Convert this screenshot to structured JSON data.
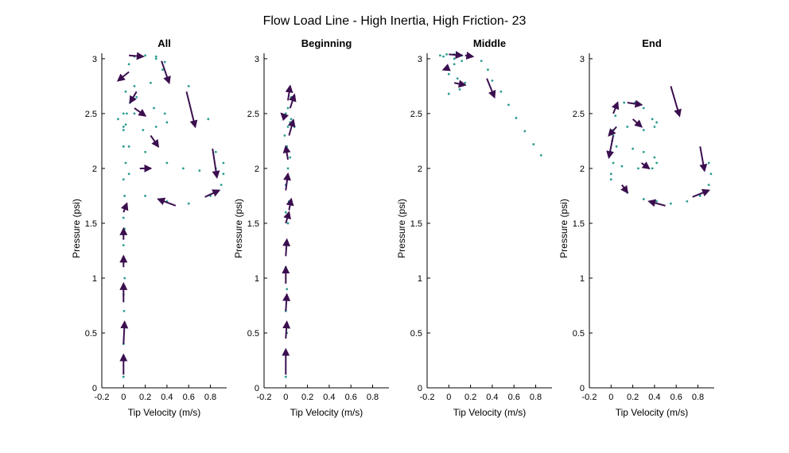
{
  "figure_title": "Flow Load Line - High Inertia, High Friction- 23",
  "colors": {
    "dots": "#2a9d8f",
    "arrows": "#3b0f4f",
    "axis": "#000000"
  },
  "chart_data": [
    {
      "type": "scatter",
      "title": "All",
      "xlabel": "Tip Velocity (m/s)",
      "ylabel": "Pressure (psi)",
      "xlim": [
        -0.2,
        0.95
      ],
      "ylim": [
        0,
        3.05
      ],
      "xticks": [
        -0.2,
        0,
        0.2,
        0.4,
        0.6,
        0.8
      ],
      "yticks": [
        0,
        0.5,
        1,
        1.5,
        2,
        2.5,
        3
      ],
      "xtick_labels": [
        "-0.2",
        "0",
        "0.2",
        "0.4",
        "0.6",
        "0.8"
      ],
      "ytick_labels": [
        "0",
        "0.5",
        "1",
        "1.5",
        "2",
        "2.5",
        "3"
      ],
      "series": [
        {
          "x": [
            0.0,
            0.005,
            0.0,
            0.01,
            0.005,
            0.0,
            0.01,
            0.005,
            0.0,
            0.01,
            0.0,
            0.005,
            0.01,
            0.0,
            0.02,
            0.05,
            0.0,
            0.03,
            0.06,
            0.02,
            -0.02,
            0.05,
            0.1,
            0.2,
            0.3,
            0.38,
            0.36,
            0.25,
            0.12,
            0.0,
            0.02,
            0.18,
            0.3,
            0.4,
            0.38,
            0.28,
            0.1,
            0.0,
            0.2,
            0.4,
            0.55,
            0.7,
            0.85,
            0.92,
            0.9,
            0.8,
            0.6,
            0.4,
            0.2,
            0.05,
            0.0,
            -0.05,
            0.1,
            0.3,
            0.6,
            0.78,
            0.85,
            0.92
          ],
          "y": [
            0.1,
            0.25,
            0.4,
            0.55,
            0.7,
            0.85,
            1.0,
            1.15,
            1.3,
            1.45,
            1.55,
            1.65,
            1.75,
            1.9,
            2.05,
            2.2,
            2.35,
            2.5,
            2.6,
            2.7,
            2.82,
            2.95,
            3.02,
            3.03,
            3.02,
            2.97,
            2.9,
            2.78,
            2.65,
            2.5,
            2.4,
            2.35,
            2.38,
            2.42,
            2.5,
            2.55,
            2.5,
            2.38,
            2.15,
            2.05,
            2.0,
            1.98,
            2.0,
            2.05,
            1.85,
            1.75,
            1.68,
            1.7,
            1.75,
            1.95,
            2.2,
            2.45,
            2.75,
            3.0,
            2.75,
            2.45,
            2.15,
            1.95
          ]
        }
      ],
      "arrows": [
        {
          "x": [
            0.0,
            0.0
          ],
          "y": [
            0.12,
            0.3
          ]
        },
        {
          "x": [
            0.0,
            0.01
          ],
          "y": [
            0.4,
            0.6
          ]
        },
        {
          "x": [
            0.0,
            0.0
          ],
          "y": [
            0.78,
            0.95
          ]
        },
        {
          "x": [
            0.0,
            0.0
          ],
          "y": [
            1.1,
            1.2
          ]
        },
        {
          "x": [
            0.0,
            0.0
          ],
          "y": [
            1.35,
            1.45
          ]
        },
        {
          "x": [
            0.0,
            0.03
          ],
          "y": [
            1.6,
            1.68
          ]
        },
        {
          "x": [
            0.48,
            0.32
          ],
          "y": [
            1.66,
            1.72
          ]
        },
        {
          "x": [
            0.75,
            0.88
          ],
          "y": [
            1.74,
            1.8
          ]
        },
        {
          "x": [
            0.82,
            0.86
          ],
          "y": [
            2.18,
            1.92
          ]
        },
        {
          "x": [
            0.58,
            0.66
          ],
          "y": [
            2.7,
            2.38
          ]
        },
        {
          "x": [
            0.35,
            0.42
          ],
          "y": [
            2.98,
            2.78
          ]
        },
        {
          "x": [
            0.15,
            0.25
          ],
          "y": [
            2.0,
            2.0
          ]
        },
        {
          "x": [
            0.25,
            0.32
          ],
          "y": [
            2.3,
            2.2
          ]
        },
        {
          "x": [
            0.1,
            0.2
          ],
          "y": [
            2.55,
            2.48
          ]
        },
        {
          "x": [
            0.05,
            -0.05
          ],
          "y": [
            2.88,
            2.8
          ]
        },
        {
          "x": [
            0.05,
            0.18
          ],
          "y": [
            3.03,
            3.02
          ]
        },
        {
          "x": [
            0.12,
            0.06
          ],
          "y": [
            2.7,
            2.6
          ]
        }
      ]
    },
    {
      "type": "scatter",
      "title": "Beginning",
      "xlabel": "Tip Velocity (m/s)",
      "ylabel": "Pressure (psi)",
      "xlim": [
        -0.2,
        0.95
      ],
      "ylim": [
        0,
        3.05
      ],
      "xticks": [
        -0.2,
        0,
        0.2,
        0.4,
        0.6,
        0.8
      ],
      "yticks": [
        0,
        0.5,
        1,
        1.5,
        2,
        2.5,
        3
      ],
      "xtick_labels": [
        "-0.2",
        "0",
        "0.2",
        "0.4",
        "0.6",
        "0.8"
      ],
      "ytick_labels": [
        "0",
        "0.5",
        "1",
        "1.5",
        "2",
        "2.5",
        "3"
      ],
      "series": [
        {
          "x": [
            0.0,
            0.005,
            0.01,
            0.0,
            0.01,
            0.0,
            0.01,
            0.02,
            0.0,
            0.03,
            0.0,
            0.02,
            0.04,
            0.01,
            -0.01,
            0.02,
            0.05,
            0.0,
            -0.02,
            0.04,
            0.08,
            0.02,
            0.05,
            0.04
          ],
          "y": [
            0.1,
            0.3,
            0.5,
            0.7,
            0.9,
            1.1,
            1.3,
            1.5,
            1.6,
            1.7,
            1.85,
            2.0,
            2.1,
            2.2,
            2.3,
            2.38,
            2.45,
            2.5,
            2.48,
            2.42,
            2.38,
            2.55,
            2.65,
            2.72
          ]
        }
      ],
      "arrows": [
        {
          "x": [
            0.0,
            0.0
          ],
          "y": [
            0.12,
            0.35
          ]
        },
        {
          "x": [
            0.0,
            0.01
          ],
          "y": [
            0.45,
            0.6
          ]
        },
        {
          "x": [
            0.0,
            0.01
          ],
          "y": [
            0.7,
            0.85
          ]
        },
        {
          "x": [
            0.0,
            0.0
          ],
          "y": [
            0.95,
            1.1
          ]
        },
        {
          "x": [
            0.0,
            0.01
          ],
          "y": [
            1.2,
            1.35
          ]
        },
        {
          "x": [
            0.0,
            0.03
          ],
          "y": [
            1.5,
            1.6
          ]
        },
        {
          "x": [
            0.03,
            0.05
          ],
          "y": [
            1.62,
            1.72
          ]
        },
        {
          "x": [
            0.0,
            0.02
          ],
          "y": [
            1.8,
            1.95
          ]
        },
        {
          "x": [
            0.02,
            0.0
          ],
          "y": [
            2.08,
            2.2
          ]
        },
        {
          "x": [
            0.03,
            0.07
          ],
          "y": [
            2.3,
            2.44
          ]
        },
        {
          "x": [
            0.0,
            -0.04
          ],
          "y": [
            2.46,
            2.5
          ]
        },
        {
          "x": [
            0.04,
            0.08
          ],
          "y": [
            2.55,
            2.67
          ]
        },
        {
          "x": [
            0.02,
            0.04
          ],
          "y": [
            2.62,
            2.75
          ]
        }
      ]
    },
    {
      "type": "scatter",
      "title": "Middle",
      "xlabel": "Tip Velocity (m/s)",
      "ylabel": "Pressure (psi)",
      "xlim": [
        -0.2,
        0.95
      ],
      "ylim": [
        0,
        3.05
      ],
      "xticks": [
        -0.2,
        0,
        0.2,
        0.4,
        0.6,
        0.8
      ],
      "yticks": [
        0,
        0.5,
        1,
        1.5,
        2,
        2.5,
        3
      ],
      "xtick_labels": [
        "-0.2",
        "0",
        "0.2",
        "0.4",
        "0.6",
        "0.8"
      ],
      "ytick_labels": [
        "0",
        "0.5",
        "1",
        "1.5",
        "2",
        "2.5",
        "3"
      ],
      "series": [
        {
          "x": [
            0.0,
            0.1,
            0.15,
            0.08,
            0.0,
            -0.03,
            0.05,
            0.12,
            0.05,
            -0.05,
            -0.08,
            -0.02,
            0.05,
            0.12,
            0.2,
            0.3,
            0.36,
            0.4,
            0.48,
            0.55,
            0.62,
            0.7,
            0.78,
            0.85
          ],
          "y": [
            2.68,
            2.72,
            2.78,
            2.82,
            2.86,
            2.9,
            2.95,
            2.98,
            3.0,
            3.02,
            3.03,
            3.04,
            3.04,
            3.03,
            3.02,
            2.98,
            2.9,
            2.8,
            2.7,
            2.58,
            2.46,
            2.34,
            2.22,
            2.12
          ]
        }
      ],
      "arrows": [
        {
          "x": [
            0.0,
            0.12
          ],
          "y": [
            3.04,
            3.03
          ]
        },
        {
          "x": [
            0.15,
            0.22
          ],
          "y": [
            3.03,
            3.02
          ]
        },
        {
          "x": [
            0.35,
            0.42
          ],
          "y": [
            2.82,
            2.65
          ]
        },
        {
          "x": [
            0.05,
            0.15
          ],
          "y": [
            2.78,
            2.76
          ]
        },
        {
          "x": [
            0.0,
            -0.05
          ],
          "y": [
            2.92,
            2.9
          ]
        }
      ]
    },
    {
      "type": "scatter",
      "title": "End",
      "xlabel": "Tip Velocity (m/s)",
      "ylabel": "Pressure (psi)",
      "xlim": [
        -0.2,
        0.95
      ],
      "ylim": [
        0,
        3.05
      ],
      "xticks": [
        -0.2,
        0,
        0.2,
        0.4,
        0.6,
        0.8
      ],
      "yticks": [
        0,
        0.5,
        1,
        1.5,
        2,
        2.5,
        3
      ],
      "xtick_labels": [
        "-0.2",
        "0",
        "0.2",
        "0.4",
        "0.6",
        "0.8"
      ],
      "ytick_labels": [
        "0",
        "0.5",
        "1",
        "1.5",
        "2",
        "2.5",
        "3"
      ],
      "series": [
        {
          "x": [
            0.0,
            0.02,
            0.0,
            0.01,
            0.02,
            0.04,
            0.12,
            0.22,
            0.3,
            0.38,
            0.42,
            0.4,
            0.3,
            0.15,
            0.02,
            0.05,
            0.2,
            0.3,
            0.4,
            0.42,
            0.38,
            0.25,
            0.1,
            0.0,
            0.15,
            0.3,
            0.42,
            0.55,
            0.7,
            0.82,
            0.9,
            0.92,
            0.9
          ],
          "y": [
            1.95,
            2.05,
            2.15,
            2.25,
            2.35,
            2.48,
            2.6,
            2.6,
            2.55,
            2.45,
            2.42,
            2.38,
            2.35,
            2.38,
            2.3,
            2.2,
            2.18,
            2.15,
            2.1,
            2.05,
            2.0,
            2.0,
            2.02,
            1.9,
            1.78,
            1.72,
            1.7,
            1.68,
            1.7,
            1.75,
            1.85,
            1.95,
            2.05
          ]
        }
      ],
      "arrows": [
        {
          "x": [
            0.2,
            0.28
          ],
          "y": [
            2.45,
            2.38
          ]
        },
        {
          "x": [
            0.28,
            0.35
          ],
          "y": [
            2.05,
            2.0
          ]
        },
        {
          "x": [
            0.02,
            0.06
          ],
          "y": [
            2.5,
            2.6
          ]
        },
        {
          "x": [
            0.02,
            -0.02
          ],
          "y": [
            2.3,
            2.1
          ]
        },
        {
          "x": [
            0.15,
            0.28
          ],
          "y": [
            2.6,
            2.58
          ]
        },
        {
          "x": [
            0.5,
            0.35
          ],
          "y": [
            1.66,
            1.7
          ]
        },
        {
          "x": [
            0.75,
            0.9
          ],
          "y": [
            1.74,
            1.8
          ]
        },
        {
          "x": [
            0.82,
            0.86
          ],
          "y": [
            2.2,
            1.98
          ]
        },
        {
          "x": [
            0.55,
            0.63
          ],
          "y": [
            2.75,
            2.48
          ]
        },
        {
          "x": [
            0.1,
            0.15
          ],
          "y": [
            1.85,
            1.78
          ]
        },
        {
          "x": [
            0.05,
            -0.02
          ],
          "y": [
            2.38,
            2.3
          ]
        }
      ]
    }
  ]
}
